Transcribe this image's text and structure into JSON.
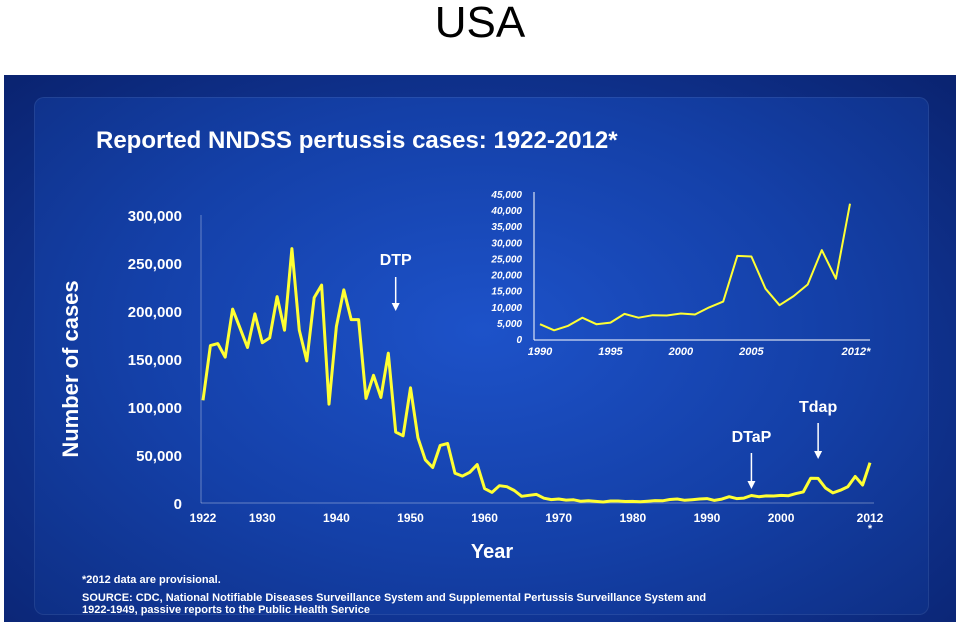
{
  "slide_title": "USA",
  "chart_data": [
    {
      "type": "line",
      "title": "Reported NNDSS pertussis cases: 1922-2012*",
      "xlabel": "Year",
      "ylabel": "Number of cases",
      "xlim": [
        1922,
        2012
      ],
      "ylim": [
        0,
        300000
      ],
      "x_ticks": [
        "1922",
        "1930",
        "1940",
        "1950",
        "1960",
        "1970",
        "1980",
        "1990",
        "2000",
        "2012"
      ],
      "x_tick_footnote": "*",
      "y_ticks": [
        "300,000",
        "250,000",
        "200,000",
        "150,000",
        "100,000",
        "50,000",
        "0"
      ],
      "line_color": "#ffff33",
      "annotations": [
        {
          "label": "DTP",
          "year": 1948
        },
        {
          "label": "DTaP",
          "year": 1996
        },
        {
          "label": "Tdap",
          "year": 2005
        }
      ],
      "series": [
        {
          "x": [
            1922,
            1923,
            1924,
            1925,
            1926,
            1927,
            1928,
            1929,
            1930,
            1931,
            1932,
            1933,
            1934,
            1935,
            1936,
            1937,
            1938,
            1939,
            1940,
            1941,
            1942,
            1943,
            1944,
            1945,
            1946,
            1947,
            1948,
            1949,
            1950,
            1951,
            1952,
            1953,
            1954,
            1955,
            1956,
            1957,
            1958,
            1959,
            1960,
            1961,
            1962,
            1963,
            1964,
            1965,
            1966,
            1967,
            1968,
            1969,
            1970,
            1971,
            1972,
            1973,
            1974,
            1975,
            1976,
            1977,
            1978,
            1979,
            1980,
            1981,
            1982,
            1983,
            1984,
            1985,
            1986,
            1987,
            1988,
            1989,
            1990,
            1991,
            1992,
            1993,
            1994,
            1995,
            1996,
            1997,
            1998,
            1999,
            2000,
            2001,
            2002,
            2003,
            2004,
            2005,
            2006,
            2007,
            2008,
            2009,
            2010,
            2011,
            2012
          ],
          "values": [
            107000,
            164000,
            166000,
            152000,
            202000,
            182000,
            162000,
            197000,
            167000,
            172000,
            215000,
            180000,
            265000,
            180000,
            148000,
            214000,
            227000,
            103000,
            184000,
            222000,
            191000,
            191000,
            109000,
            133000,
            110000,
            156000,
            74000,
            70000,
            120000,
            68000,
            45000,
            37000,
            60000,
            62000,
            31000,
            28000,
            32000,
            40000,
            15000,
            11000,
            18000,
            17000,
            13000,
            7000,
            8000,
            9000,
            5000,
            3500,
            4200,
            3000,
            3300,
            1800,
            2400,
            1700,
            1000,
            2100,
            2100,
            1600,
            1700,
            1200,
            1900,
            2500,
            2300,
            3600,
            4200,
            2800,
            3400,
            4200,
            4600,
            2700,
            4100,
            6600,
            4600,
            5100,
            7800,
            6600,
            7400,
            7300,
            7900,
            7600,
            9800,
            11600,
            25800,
            25600,
            15600,
            10500,
            13300,
            16900,
            27600,
            18700,
            42000
          ]
        }
      ]
    },
    {
      "type": "line",
      "title": "",
      "xlim": [
        1990,
        2012
      ],
      "ylim": [
        0,
        45000
      ],
      "x_ticks": [
        "1990",
        "1995",
        "2000",
        "2005",
        "2012*"
      ],
      "y_ticks": [
        "45,000",
        "40,000",
        "35,000",
        "30,000",
        "25,000",
        "20,000",
        "15,000",
        "10,000",
        "5,000",
        "0"
      ],
      "line_color": "#ffff33",
      "series": [
        {
          "x": [
            1990,
            1991,
            1992,
            1993,
            1994,
            1995,
            1996,
            1997,
            1998,
            1999,
            2000,
            2001,
            2002,
            2003,
            2004,
            2005,
            2006,
            2007,
            2008,
            2009,
            2010,
            2011,
            2012
          ],
          "values": [
            4600,
            2700,
            4100,
            6600,
            4600,
            5100,
            7800,
            6600,
            7400,
            7300,
            7900,
            7600,
            9800,
            11600,
            25800,
            25600,
            15600,
            10500,
            13300,
            16900,
            27600,
            18700,
            42000
          ]
        }
      ]
    }
  ],
  "footnote": "*2012 data are provisional.",
  "source_line1": "SOURCE: CDC, National Notifiable Diseases Surveillance System and Supplemental Pertussis Surveillance System and",
  "source_line2": "1922-1949, passive reports to the Public Health Service"
}
